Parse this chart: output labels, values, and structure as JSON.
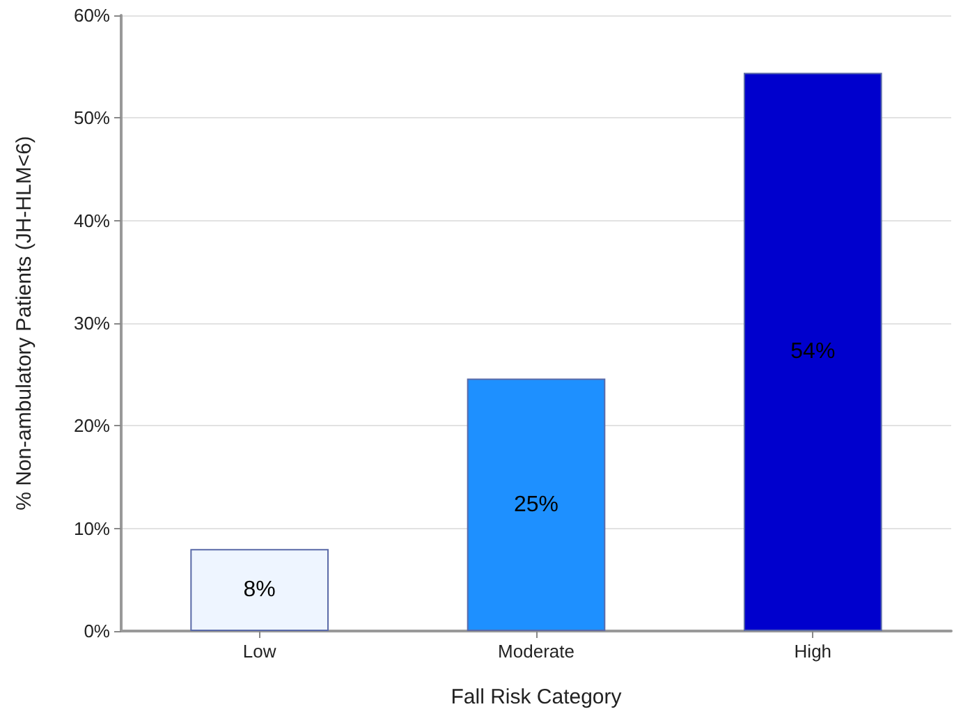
{
  "chart_data": {
    "type": "bar",
    "xlabel": "Fall Risk Category",
    "ylabel": "% Non-ambulatory Patients (JH-HLM<6)",
    "categories": [
      "Low",
      "Moderate",
      "High"
    ],
    "values": [
      8.0,
      24.6,
      54.4
    ],
    "colors": [
      "#eef5ff",
      "#1e90ff",
      "#0000cd"
    ],
    "value_labels": [
      "8%",
      "25%",
      "54%"
    ],
    "ylim": [
      0,
      60
    ],
    "yticks": [
      {
        "value": 0,
        "label": "0%"
      },
      {
        "value": 10,
        "label": "10%"
      },
      {
        "value": 20,
        "label": "20%"
      },
      {
        "value": 30,
        "label": "30%"
      },
      {
        "value": 40,
        "label": "40%"
      },
      {
        "value": 50,
        "label": "50%"
      },
      {
        "value": 60,
        "label": "60%"
      }
    ],
    "grid": "y"
  }
}
